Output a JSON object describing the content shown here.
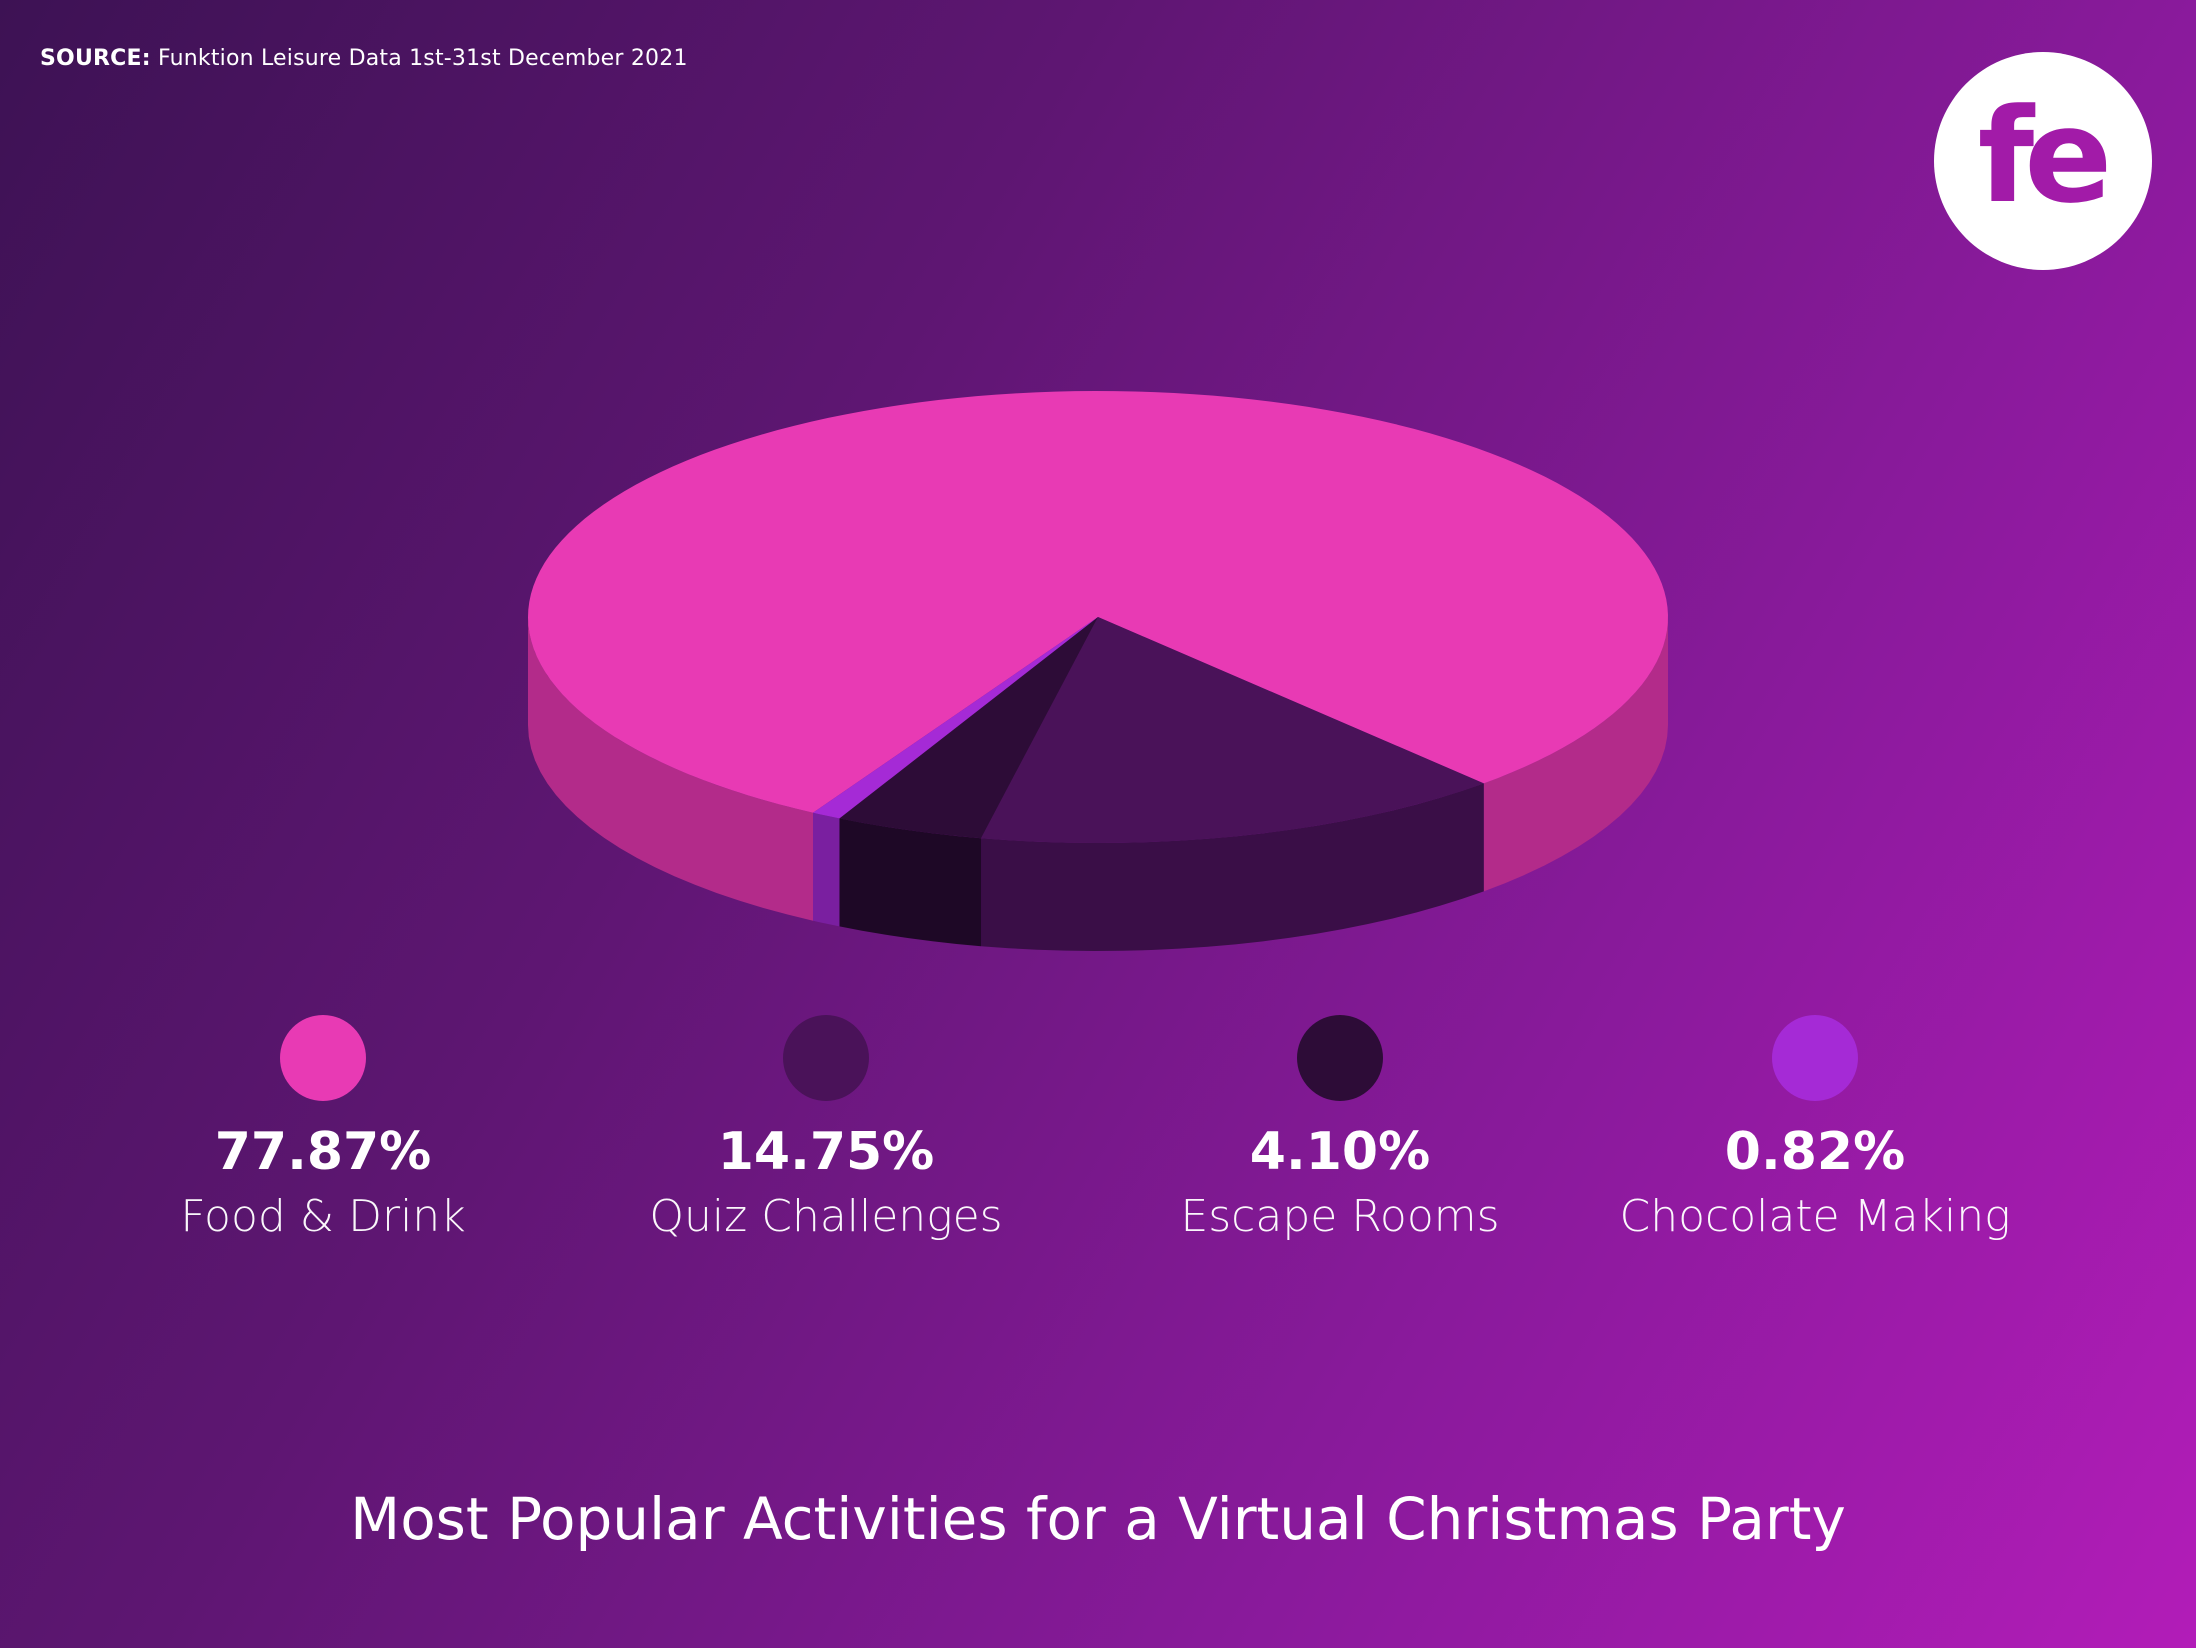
{
  "source": {
    "label": "SOURCE:",
    "text": "Funktion Leisure Data 1st-31st December 2021"
  },
  "logo": {
    "text": "fe",
    "icon": "fe-logo-icon",
    "color": "#a21ba8"
  },
  "chart_data": {
    "type": "pie",
    "title": "Most Popular Activities for a Virtual Christmas Party",
    "style": "3d",
    "categories": [
      "Food & Drink",
      "Quiz Challenges",
      "Escape Rooms",
      "Chocolate Making"
    ],
    "values": [
      77.87,
      14.75,
      4.1,
      0.82
    ],
    "labels": [
      "77.87%",
      "14.75%",
      "4.10%",
      "0.82%"
    ],
    "colors": [
      "#e83ab4",
      "#4a1259",
      "#2d0c37",
      "#a52ad6"
    ],
    "side_colors": [
      "#b32b8a",
      "#3a0e47",
      "#1e0826",
      "#7a1fa0"
    ],
    "legend_position": "bottom"
  }
}
